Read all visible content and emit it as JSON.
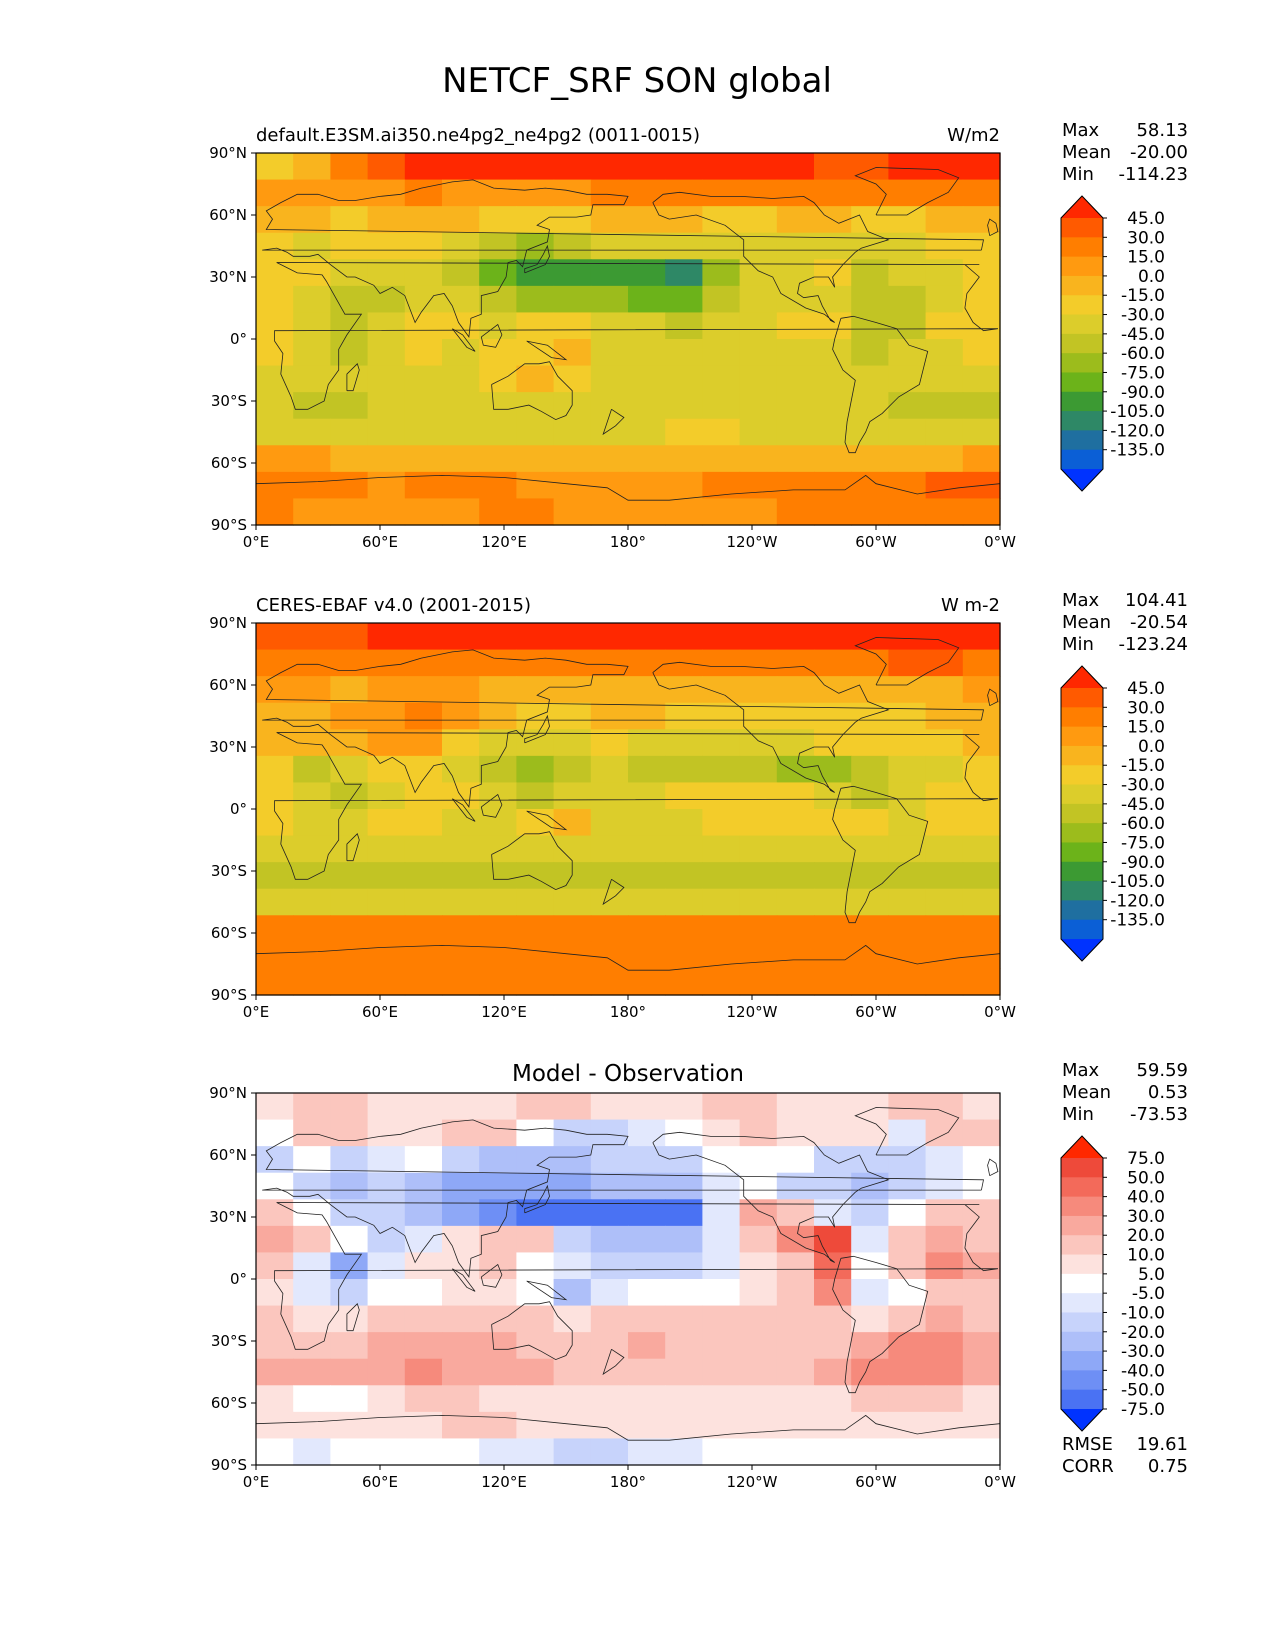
{
  "figure_title": "NETCF_SRF SON global",
  "lat_ticks": [
    "90°N",
    "60°N",
    "30°N",
    "0°",
    "30°S",
    "60°S",
    "90°S"
  ],
  "lon_ticks": [
    "0°E",
    "60°E",
    "120°E",
    "180°",
    "120°W",
    "60°W",
    "0°W"
  ],
  "panels": [
    {
      "title_left": "default.E3SM.ai350.ne4pg2_ne4pg2 (0011-0015)",
      "title_center": "",
      "units": "W/m2",
      "stats": [
        {
          "label": "Max",
          "value": "58.13"
        },
        {
          "label": "Mean",
          "value": "-20.00"
        },
        {
          "label": "Min",
          "value": "-114.23"
        }
      ],
      "colorbar_labels": [
        "45.0",
        "30.0",
        "15.0",
        "0.0",
        "-15.0",
        "-30.0",
        "-45.0",
        "-60.0",
        "-75.0",
        "-90.0",
        "-105.0",
        "-120.0",
        "-135.0"
      ],
      "colorbar_colors": [
        "#ff2800",
        "#ff5a00",
        "#ff7e00",
        "#ff9a10",
        "#f9b41e",
        "#f3cc2a",
        "#dccd2b",
        "#c2c424",
        "#9cbc1c",
        "#6cb31a",
        "#3c9a33",
        "#2e8866",
        "#1f6fa0",
        "#0b5fd6",
        "#0033ff"
      ],
      "field": [
        [
          -20,
          -10,
          25,
          40,
          45,
          45,
          45,
          50,
          50,
          50,
          50,
          52,
          50,
          55,
          45,
          40,
          40,
          50,
          55,
          58
        ],
        [
          10,
          5,
          0,
          10,
          15,
          10,
          5,
          5,
          10,
          15,
          20,
          20,
          20,
          15,
          20,
          15,
          15,
          20,
          20,
          15
        ],
        [
          -10,
          -15,
          -20,
          -15,
          -10,
          -15,
          -20,
          -25,
          -20,
          -10,
          -5,
          -10,
          -20,
          -25,
          -15,
          -5,
          -20,
          -20,
          -10,
          -5
        ],
        [
          -25,
          -35,
          -25,
          -20,
          -25,
          -40,
          -55,
          -65,
          -55,
          -45,
          -40,
          -35,
          -35,
          -45,
          -40,
          -35,
          -45,
          -40,
          -25,
          -20
        ],
        [
          -30,
          -30,
          -40,
          -35,
          -35,
          -55,
          -80,
          -95,
          -100,
          -100,
          -105,
          -114,
          -75,
          -45,
          -40,
          -30,
          -50,
          -45,
          -35,
          -30
        ],
        [
          -25,
          -35,
          -50,
          -50,
          -40,
          -45,
          -60,
          -70,
          -75,
          -75,
          -80,
          -90,
          -60,
          -40,
          -35,
          -35,
          -55,
          -60,
          -35,
          -25
        ],
        [
          -20,
          -40,
          -55,
          -45,
          -25,
          -30,
          -40,
          -20,
          -30,
          -45,
          -45,
          -50,
          -45,
          -35,
          -30,
          -30,
          -50,
          -55,
          -30,
          -20
        ],
        [
          -25,
          -35,
          -50,
          -40,
          -30,
          -35,
          -30,
          -20,
          -15,
          -40,
          -45,
          -40,
          -40,
          -35,
          -40,
          -40,
          -50,
          -45,
          -35,
          -30
        ],
        [
          -35,
          -40,
          -45,
          -40,
          -35,
          -40,
          -30,
          -15,
          -25,
          -35,
          -40,
          -35,
          -40,
          -45,
          -45,
          -40,
          -40,
          -40,
          -40,
          -45
        ],
        [
          -45,
          -50,
          -50,
          -45,
          -40,
          -45,
          -45,
          -35,
          -40,
          -45,
          -45,
          -40,
          -40,
          -45,
          -45,
          -40,
          -45,
          -50,
          -50,
          -55
        ],
        [
          -35,
          -40,
          -40,
          -40,
          -35,
          -40,
          -40,
          -40,
          -45,
          -40,
          -35,
          -30,
          -30,
          -35,
          -35,
          -35,
          -40,
          -45,
          -45,
          -40
        ],
        [
          10,
          0,
          -5,
          -5,
          -5,
          -5,
          -10,
          -10,
          -5,
          -10,
          -10,
          -10,
          -5,
          -5,
          -5,
          -10,
          -10,
          -5,
          -5,
          10
        ],
        [
          25,
          20,
          15,
          10,
          15,
          15,
          15,
          10,
          5,
          5,
          10,
          10,
          15,
          15,
          20,
          25,
          25,
          25,
          30,
          40
        ],
        [
          15,
          10,
          10,
          10,
          10,
          10,
          15,
          15,
          10,
          10,
          10,
          10,
          10,
          10,
          15,
          15,
          15,
          15,
          15,
          15
        ]
      ]
    },
    {
      "title_left": "CERES-EBAF v4.0 (2001-2015)",
      "title_center": "",
      "units": "W m-2",
      "stats": [
        {
          "label": "Max",
          "value": "104.41"
        },
        {
          "label": "Mean",
          "value": "-20.54"
        },
        {
          "label": "Min",
          "value": "-123.24"
        }
      ],
      "colorbar_labels": [
        "45.0",
        "30.0",
        "15.0",
        "0.0",
        "-15.0",
        "-30.0",
        "-45.0",
        "-60.0",
        "-75.0",
        "-90.0",
        "-105.0",
        "-120.0",
        "-135.0"
      ],
      "colorbar_colors": [
        "#ff2800",
        "#ff5a00",
        "#ff7e00",
        "#ff9a10",
        "#f9b41e",
        "#f3cc2a",
        "#dccd2b",
        "#c2c424",
        "#9cbc1c",
        "#6cb31a",
        "#3c9a33",
        "#2e8866",
        "#1f6fa0",
        "#0b5fd6",
        "#0033ff"
      ],
      "field": [
        [
          40,
          35,
          40,
          45,
          45,
          45,
          45,
          45,
          45,
          45,
          45,
          45,
          45,
          45,
          45,
          45,
          45,
          60,
          55,
          45
        ],
        [
          20,
          20,
          20,
          25,
          25,
          20,
          15,
          15,
          15,
          20,
          20,
          20,
          20,
          15,
          15,
          20,
          20,
          40,
          35,
          25
        ],
        [
          5,
          0,
          -5,
          0,
          5,
          5,
          -5,
          -10,
          -10,
          -5,
          -5,
          -5,
          -10,
          -15,
          -15,
          -15,
          -10,
          -10,
          -5,
          0
        ],
        [
          -5,
          -10,
          0,
          10,
          15,
          5,
          -15,
          -25,
          -20,
          -15,
          -15,
          -20,
          -20,
          -25,
          -20,
          -20,
          -20,
          -20,
          -10,
          -5
        ],
        [
          -10,
          -15,
          -5,
          5,
          0,
          -25,
          -40,
          -45,
          -35,
          -30,
          -35,
          -40,
          -40,
          -40,
          -35,
          -30,
          -25,
          -30,
          -25,
          -15
        ],
        [
          -30,
          -55,
          -45,
          -25,
          -25,
          -40,
          -60,
          -70,
          -55,
          -45,
          -55,
          -60,
          -60,
          -60,
          -65,
          -75,
          -55,
          -40,
          -35,
          -30
        ],
        [
          -25,
          -45,
          -55,
          -40,
          -25,
          -30,
          -45,
          -50,
          -45,
          -45,
          -35,
          -30,
          -25,
          -25,
          -30,
          -45,
          -55,
          -45,
          -30,
          -20
        ],
        [
          -25,
          -35,
          -35,
          -30,
          -25,
          -35,
          -40,
          -25,
          -15,
          -35,
          -40,
          -35,
          -30,
          -25,
          -25,
          -30,
          -25,
          -35,
          -30,
          -25
        ],
        [
          -40,
          -40,
          -45,
          -40,
          -40,
          -45,
          -40,
          -35,
          -35,
          -40,
          -45,
          -40,
          -40,
          -45,
          -45,
          -40,
          -40,
          -45,
          -45,
          -45
        ],
        [
          -55,
          -55,
          -55,
          -55,
          -50,
          -55,
          -55,
          -50,
          -50,
          -50,
          -50,
          -50,
          -50,
          -50,
          -50,
          -50,
          -50,
          -55,
          -55,
          -55
        ],
        [
          -45,
          -45,
          -45,
          -45,
          -45,
          -45,
          -45,
          -45,
          -45,
          -45,
          -45,
          -45,
          -45,
          -45,
          -45,
          -45,
          -45,
          -45,
          -45,
          -45
        ],
        [
          15,
          15,
          15,
          15,
          15,
          15,
          15,
          15,
          15,
          15,
          15,
          15,
          15,
          15,
          15,
          15,
          15,
          15,
          15,
          15
        ],
        [
          25,
          25,
          20,
          20,
          20,
          20,
          20,
          20,
          20,
          20,
          20,
          20,
          20,
          25,
          25,
          25,
          25,
          25,
          25,
          25
        ],
        [
          15,
          15,
          15,
          15,
          15,
          15,
          15,
          15,
          15,
          15,
          15,
          15,
          15,
          15,
          15,
          15,
          15,
          15,
          15,
          15
        ]
      ]
    },
    {
      "title_left": "",
      "title_center": "Model - Observation",
      "units": "",
      "stats": [
        {
          "label": "Max",
          "value": "59.59"
        },
        {
          "label": "Mean",
          "value": "0.53"
        },
        {
          "label": "Min",
          "value": "-73.53"
        }
      ],
      "extra_stats": [
        {
          "label": "RMSE",
          "value": "19.61"
        },
        {
          "label": "CORR",
          "value": "0.75"
        }
      ],
      "colorbar_labels": [
        "75.0",
        "50.0",
        "40.0",
        "30.0",
        "20.0",
        "10.0",
        "5.0",
        "-5.0",
        "-10.0",
        "-20.0",
        "-30.0",
        "-40.0",
        "-50.0",
        "-75.0"
      ],
      "colorbar_colors": [
        "#ff2800",
        "#ee4a3a",
        "#f36a5a",
        "#f68a7c",
        "#f9a99e",
        "#fbc6be",
        "#fde2de",
        "#ffffff",
        "#e2e8fd",
        "#c7d3fb",
        "#aebff9",
        "#8ea8f7",
        "#6e8ff5",
        "#4a72f3",
        "#0033ff"
      ],
      "field": [
        [
          5,
          10,
          10,
          5,
          5,
          5,
          8,
          10,
          10,
          5,
          5,
          5,
          10,
          10,
          8,
          5,
          5,
          10,
          10,
          5
        ],
        [
          -5,
          10,
          15,
          5,
          5,
          10,
          15,
          -5,
          -20,
          -15,
          -10,
          -5,
          5,
          10,
          5,
          5,
          5,
          -10,
          10,
          10
        ],
        [
          -15,
          -5,
          -15,
          -10,
          -5,
          -20,
          -25,
          -30,
          -25,
          -20,
          -15,
          -15,
          -5,
          -5,
          -5,
          -20,
          -20,
          -15,
          -10,
          -5
        ],
        [
          -5,
          -15,
          -25,
          -15,
          -25,
          -35,
          -40,
          -40,
          -35,
          -30,
          -30,
          -25,
          -10,
          -5,
          -15,
          -15,
          -25,
          -20,
          -10,
          -5
        ],
        [
          10,
          -5,
          -15,
          -15,
          -25,
          -35,
          -45,
          -55,
          -60,
          -60,
          -65,
          -73,
          -10,
          20,
          15,
          -10,
          -15,
          0,
          15,
          10
        ],
        [
          20,
          10,
          -5,
          -15,
          -10,
          5,
          10,
          10,
          -15,
          -30,
          -30,
          -30,
          -10,
          15,
          30,
          50,
          -10,
          10,
          25,
          15
        ],
        [
          10,
          -10,
          -35,
          -10,
          5,
          5,
          10,
          -5,
          -10,
          -15,
          -15,
          -15,
          -10,
          5,
          15,
          45,
          -5,
          15,
          30,
          20
        ],
        [
          5,
          -10,
          -20,
          -5,
          -5,
          5,
          5,
          -5,
          -25,
          -10,
          -5,
          -5,
          -5,
          5,
          10,
          30,
          -10,
          -5,
          10,
          10
        ],
        [
          10,
          5,
          5,
          10,
          10,
          10,
          10,
          15,
          5,
          10,
          15,
          10,
          10,
          10,
          15,
          10,
          5,
          15,
          20,
          15
        ],
        [
          10,
          15,
          15,
          20,
          25,
          20,
          20,
          15,
          15,
          15,
          20,
          15,
          15,
          10,
          15,
          15,
          25,
          30,
          30,
          20
        ],
        [
          25,
          20,
          25,
          25,
          30,
          25,
          20,
          20,
          15,
          15,
          15,
          15,
          15,
          10,
          15,
          20,
          30,
          35,
          30,
          25
        ],
        [
          5,
          -5,
          -5,
          5,
          10,
          10,
          5,
          5,
          5,
          5,
          5,
          5,
          5,
          5,
          5,
          5,
          10,
          10,
          10,
          5
        ],
        [
          5,
          5,
          5,
          5,
          5,
          10,
          10,
          5,
          5,
          5,
          5,
          5,
          5,
          5,
          5,
          5,
          5,
          5,
          5,
          5
        ],
        [
          -5,
          -10,
          -5,
          -5,
          -5,
          -5,
          -10,
          -10,
          -15,
          -15,
          -10,
          -10,
          -5,
          -5,
          -5,
          -5,
          -5,
          -5,
          -5,
          -5
        ]
      ]
    }
  ]
}
